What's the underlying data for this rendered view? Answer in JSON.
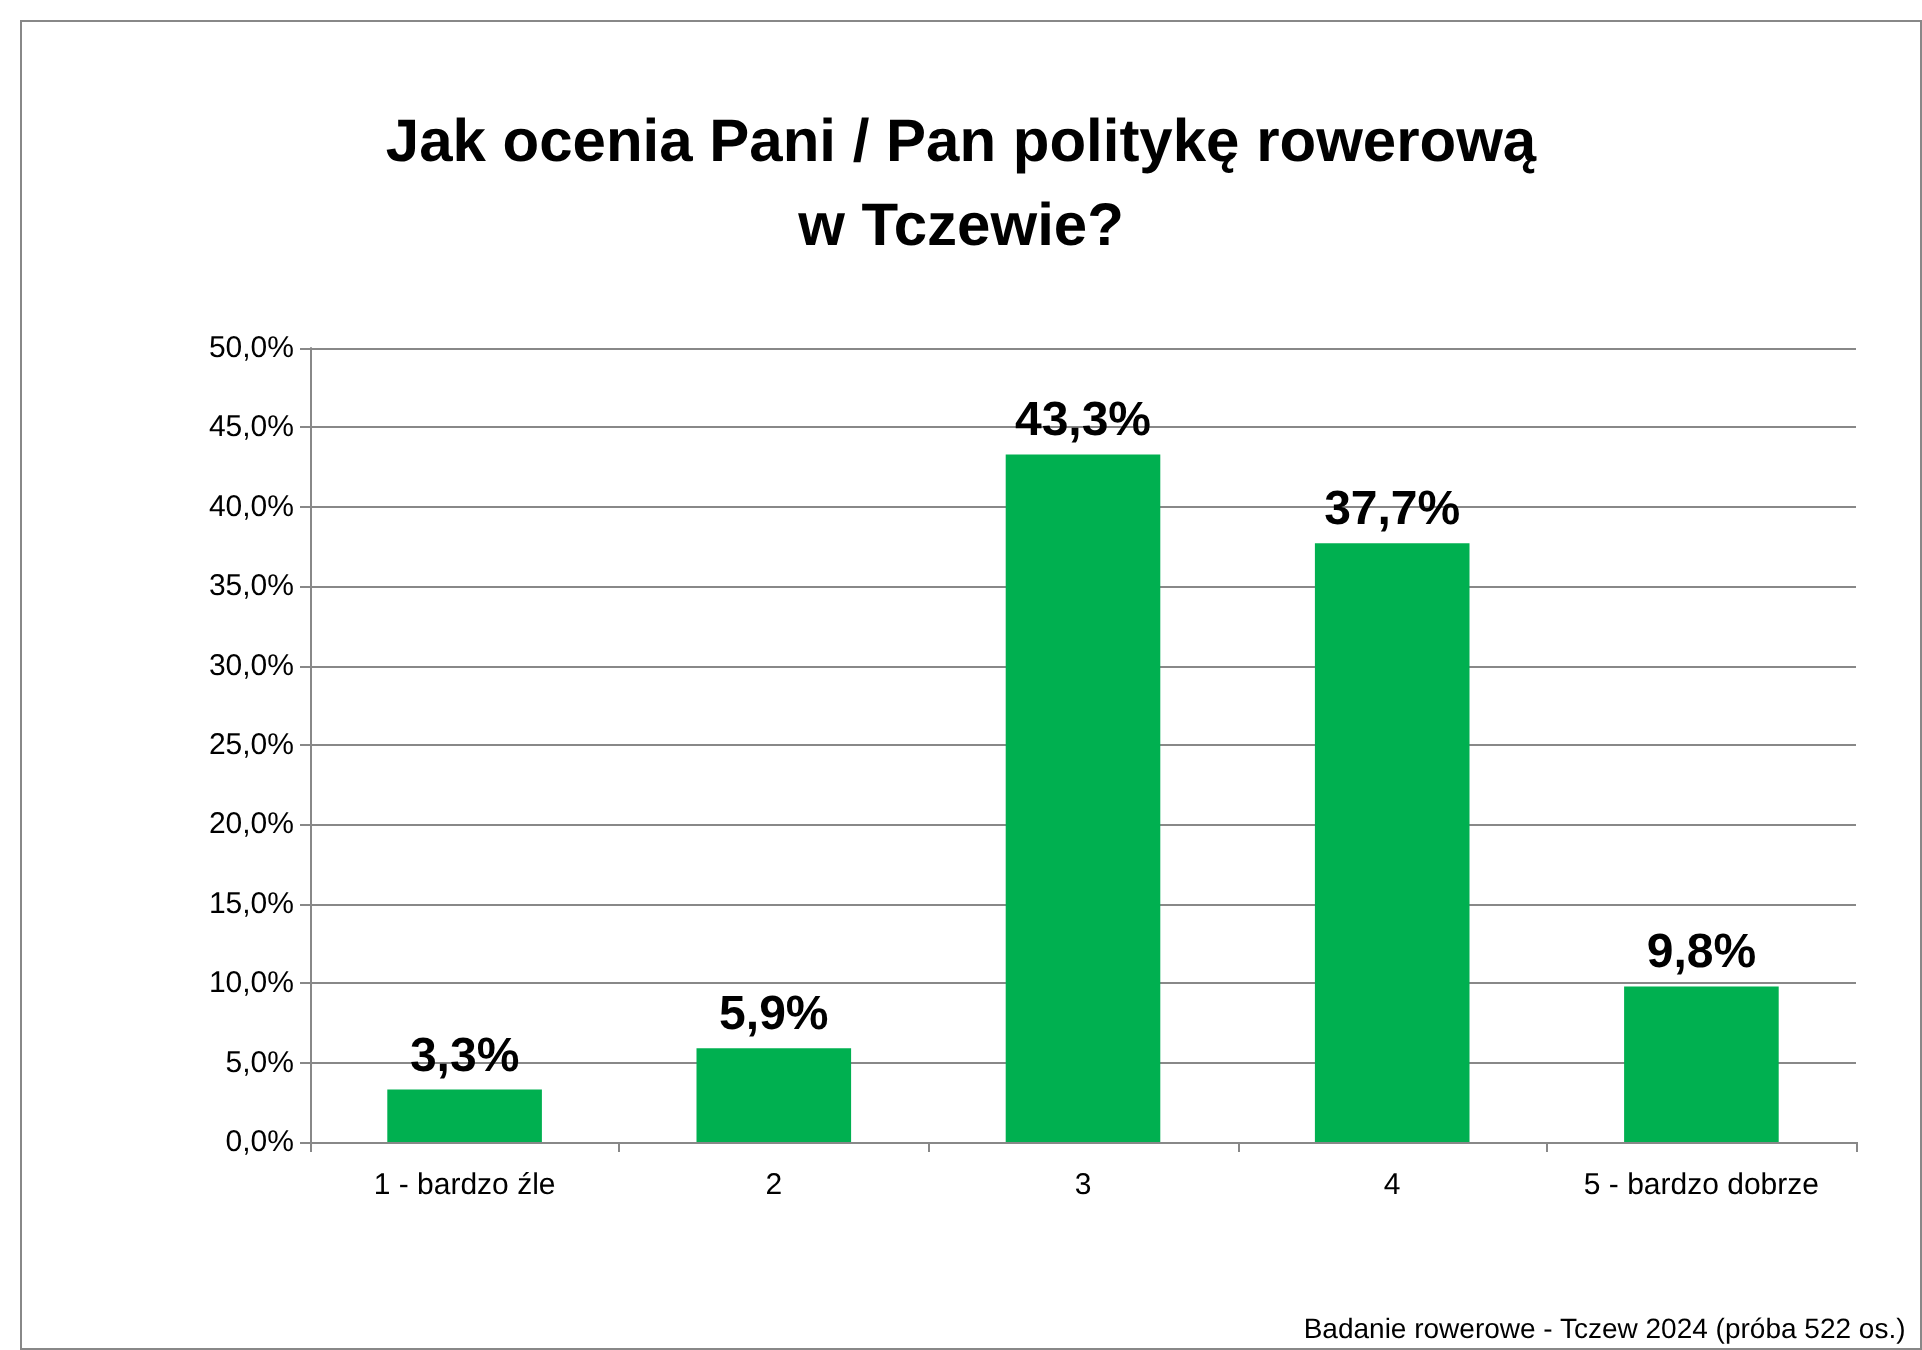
{
  "chart_data": {
    "type": "bar",
    "title": "Jak ocenia Pani / Pan politykę rowerową\nw Tczewie?",
    "categories": [
      "1 - bardzo źle",
      "2",
      "3",
      "4",
      "5 - bardzo dobrze"
    ],
    "values": [
      3.3,
      5.9,
      43.3,
      37.7,
      9.8
    ],
    "value_labels": [
      "3,3%",
      "5,9%",
      "43,3%",
      "37,7%",
      "9,8%"
    ],
    "color": "#00b050",
    "ylim": [
      0,
      50
    ],
    "yticks": [
      {
        "value": 0,
        "label": "0,0%"
      },
      {
        "value": 5,
        "label": "5,0%"
      },
      {
        "value": 10,
        "label": "10,0%"
      },
      {
        "value": 15,
        "label": "15,0%"
      },
      {
        "value": 20,
        "label": "20,0%"
      },
      {
        "value": 25,
        "label": "25,0%"
      },
      {
        "value": 30,
        "label": "30,0%"
      },
      {
        "value": 35,
        "label": "35,0%"
      },
      {
        "value": 40,
        "label": "40,0%"
      },
      {
        "value": 45,
        "label": "45,0%"
      },
      {
        "value": 50,
        "label": "50,0%"
      }
    ],
    "grid": "y",
    "annotations": [
      "Badanie rowerowe - Tczew 2024 (próba 522 os.)"
    ]
  }
}
